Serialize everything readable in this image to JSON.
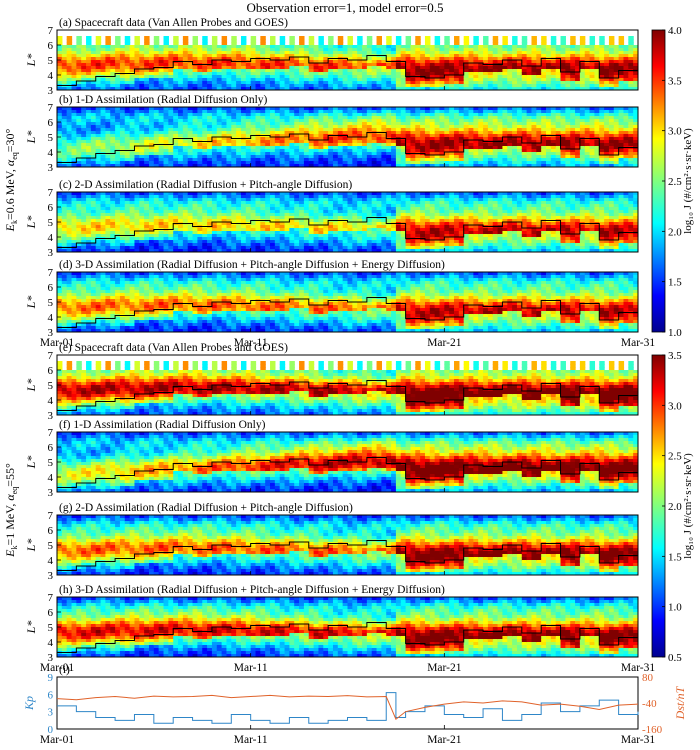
{
  "figure_title": "Observation error=1, model error=0.5",
  "group_labels": [
    {
      "energy": "0.6 MeV",
      "alpha": "30°",
      "text": "E",
      "full": "Eₖ=0.6 MeV, αₑq=30°"
    },
    {
      "energy": "1 MeV",
      "alpha": "55°",
      "text": "E",
      "full": "Eₖ=1 MeV, αₑq=55°"
    }
  ],
  "panels": [
    {
      "label": "(a) Spacecraft data (Van Allen Probes and GOES)",
      "kind": "data"
    },
    {
      "label": "(b) 1-D Assimilation (Radial Diffusion Only)",
      "kind": "1d"
    },
    {
      "label": "(c) 2-D Assimilation (Radial Diffusion + Pitch-angle Diffusion)",
      "kind": "2d"
    },
    {
      "label": "(d) 3-D Assimilation (Radial Diffusion + Pitch-angle Diffusion + Energy Diffusion)",
      "kind": "3d"
    },
    {
      "label": "(e) Spacecraft data (Van Allen Probes and GOES)",
      "kind": "data"
    },
    {
      "label": "(f) 1-D Assimilation (Radial Diffusion Only)",
      "kind": "1d"
    },
    {
      "label": "(g) 2-D Assimilation (Radial Diffusion + Pitch-angle Diffusion)",
      "kind": "2d"
    },
    {
      "label": "(h) 3-D Assimilation (Radial Diffusion + Pitch-angle Diffusion + Energy Diffusion)",
      "kind": "3d"
    },
    {
      "label": "(i)",
      "kind": "index"
    }
  ],
  "y_axis_label": "L*",
  "l_ticks": [
    "3",
    "4",
    "5",
    "6",
    "7"
  ],
  "x_ticks": [
    "Mar-01",
    "Mar-11",
    "Mar-21",
    "Mar-31"
  ],
  "colorbars": [
    {
      "label": "log₁₀ J (#/cm²·s·sr·keV)",
      "ticks": [
        "1.0",
        "1.5",
        "2.0",
        "2.5",
        "3.0",
        "3.5",
        "4.0"
      ],
      "range": [
        1.0,
        4.0
      ]
    },
    {
      "label": "log₁₀ J (#/cm²·s·sr·keV)",
      "ticks": [
        "0.5",
        "1.0",
        "1.5",
        "2.0",
        "2.5",
        "3.0",
        "3.5"
      ],
      "range": [
        0.5,
        3.5
      ]
    }
  ],
  "kp_axis": {
    "label": "Kp",
    "ticks": [
      "0",
      "3",
      "6",
      "9"
    ],
    "color": "#2e86c8"
  },
  "dst_axis": {
    "label": "Dst/nT",
    "ticks": [
      "80",
      "-40",
      "-160"
    ],
    "color": "#e0622a"
  },
  "chart_data": {
    "type": "heatmap",
    "x_range_days": [
      0,
      30
    ],
    "l_range": [
      3,
      7
    ],
    "lpp_line": [
      [
        0,
        3.3
      ],
      [
        1,
        3.6
      ],
      [
        2,
        3.9
      ],
      [
        3,
        4.1
      ],
      [
        4,
        4.4
      ],
      [
        5,
        4.5
      ],
      [
        6,
        4.9
      ],
      [
        7,
        4.7
      ],
      [
        8,
        5.0
      ],
      [
        9,
        4.9
      ],
      [
        10,
        5.1
      ],
      [
        11,
        5.0
      ],
      [
        12,
        5.2
      ],
      [
        13,
        4.8
      ],
      [
        14,
        5.1
      ],
      [
        15,
        5.0
      ],
      [
        16,
        5.3
      ],
      [
        17,
        4.9
      ],
      [
        18,
        3.9
      ],
      [
        19,
        3.8
      ],
      [
        20,
        4.0
      ],
      [
        21,
        4.8
      ],
      [
        22,
        4.7
      ],
      [
        23,
        5.0
      ],
      [
        24,
        4.6
      ],
      [
        25,
        5.1
      ],
      [
        26,
        4.2
      ],
      [
        27,
        4.9
      ],
      [
        28,
        3.8
      ],
      [
        29,
        4.3
      ],
      [
        30,
        4.6
      ]
    ],
    "kp": [
      [
        0,
        4.0
      ],
      [
        1,
        3.0
      ],
      [
        2,
        2.0
      ],
      [
        3,
        1.5
      ],
      [
        4,
        2.5
      ],
      [
        5,
        1.0
      ],
      [
        6,
        2.0
      ],
      [
        7,
        1.5
      ],
      [
        8,
        1.0
      ],
      [
        9,
        2.5
      ],
      [
        10,
        1.5
      ],
      [
        11,
        1.0
      ],
      [
        12,
        2.0
      ],
      [
        13,
        1.0
      ],
      [
        14,
        1.5
      ],
      [
        15,
        2.0
      ],
      [
        16,
        1.5
      ],
      [
        17,
        6.3
      ],
      [
        17.5,
        2.0
      ],
      [
        18,
        3.0
      ],
      [
        19,
        4.0
      ],
      [
        20,
        2.5
      ],
      [
        21,
        2.0
      ],
      [
        22,
        3.5
      ],
      [
        23,
        1.5
      ],
      [
        24,
        2.5
      ],
      [
        25,
        4.5
      ],
      [
        26,
        3.0
      ],
      [
        27,
        4.0
      ],
      [
        28,
        5.0
      ],
      [
        29,
        2.5
      ],
      [
        30,
        3.0
      ]
    ],
    "dst": [
      [
        0,
        -20
      ],
      [
        1,
        -25
      ],
      [
        2,
        -15
      ],
      [
        3,
        -10
      ],
      [
        4,
        -18
      ],
      [
        5,
        -8
      ],
      [
        6,
        -12
      ],
      [
        7,
        -10
      ],
      [
        8,
        -5
      ],
      [
        9,
        -15
      ],
      [
        10,
        -10
      ],
      [
        11,
        -5
      ],
      [
        12,
        -12
      ],
      [
        13,
        -8
      ],
      [
        14,
        -10
      ],
      [
        15,
        -6
      ],
      [
        16,
        -12
      ],
      [
        17,
        -10
      ],
      [
        17.5,
        -115
      ],
      [
        18,
        -80
      ],
      [
        19,
        -60
      ],
      [
        20,
        -45
      ],
      [
        21,
        -35
      ],
      [
        22,
        -40
      ],
      [
        23,
        -30
      ],
      [
        24,
        -35
      ],
      [
        25,
        -50
      ],
      [
        26,
        -45
      ],
      [
        27,
        -55
      ],
      [
        28,
        -70
      ],
      [
        29,
        -50
      ],
      [
        30,
        -45
      ]
    ],
    "kp_range": [
      0,
      9
    ],
    "dst_range": [
      -160,
      80
    ]
  }
}
